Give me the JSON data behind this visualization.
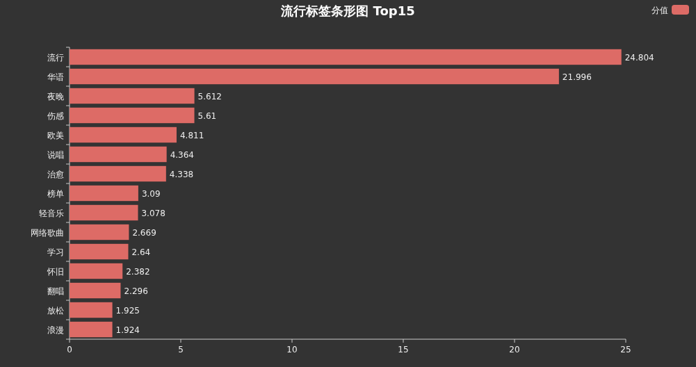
{
  "chart_data": {
    "type": "bar",
    "orientation": "horizontal",
    "title": "流行标签条形图 Top15",
    "categories": [
      "流行",
      "华语",
      "夜晚",
      "伤感",
      "欧美",
      "说唱",
      "治愈",
      "榜单",
      "轻音乐",
      "网络歌曲",
      "学习",
      "怀旧",
      "翻唱",
      "放松",
      "浪漫"
    ],
    "series": [
      {
        "name": "分值",
        "color": "#dd6b66",
        "values": [
          24.804,
          21.996,
          5.612,
          5.61,
          4.811,
          4.364,
          4.338,
          3.09,
          3.078,
          2.669,
          2.64,
          2.382,
          2.296,
          1.925,
          1.924
        ]
      }
    ],
    "xlim": [
      0,
      25
    ],
    "xticks": [
      0,
      5,
      10,
      15,
      20,
      25
    ],
    "data_labels": true,
    "legend": "top right",
    "grid": false
  }
}
